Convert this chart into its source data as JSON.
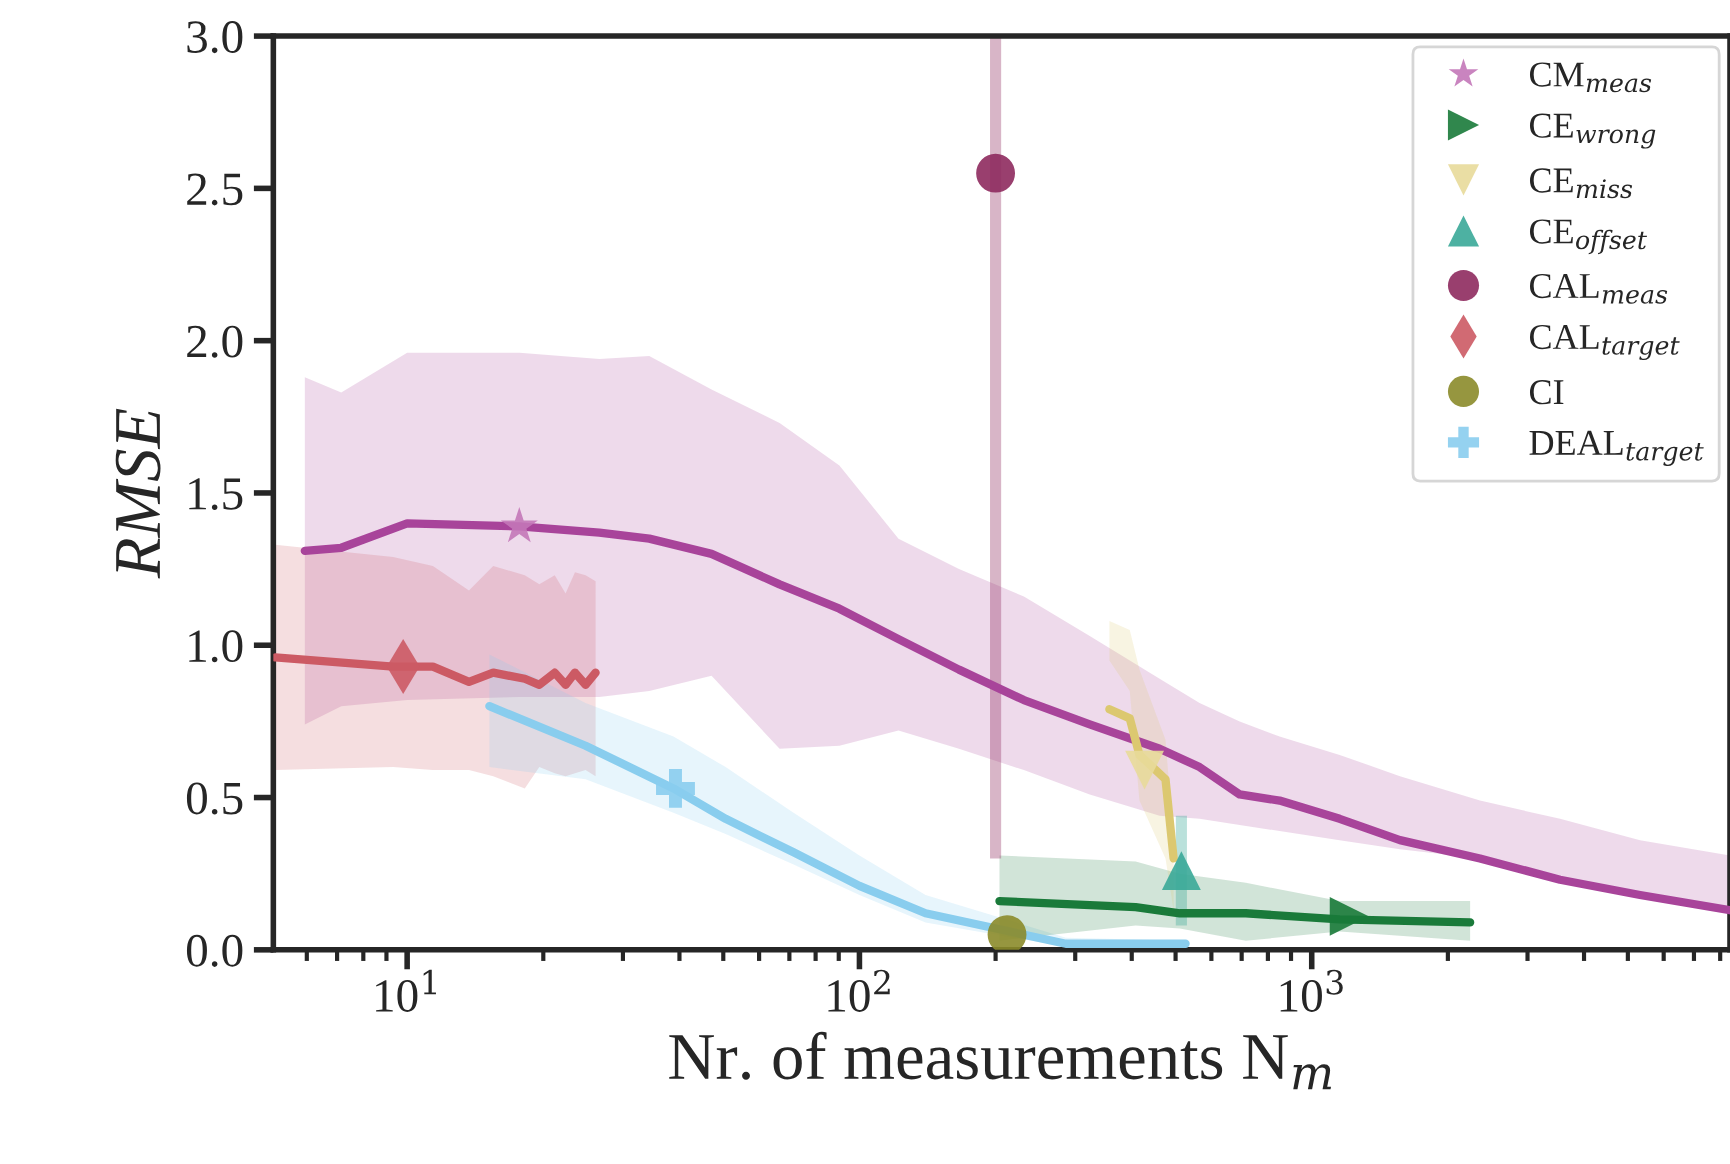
{
  "chart_data": {
    "type": "line",
    "xlabel": "Nr. of measurements N$_{m}$",
    "ylabel": "RMSE",
    "log": "x",
    "xlim": [
      5.06,
      8410
    ],
    "xticks": [
      {
        "value": 10,
        "label": "10$^{1}$"
      },
      {
        "value": 100,
        "label": "10$^{2}$"
      },
      {
        "value": 1000,
        "label": "10$^{3}$"
      }
    ],
    "ylim": [
      0,
      3.0
    ],
    "yticks": [
      {
        "value": 0,
        "label": "0.0"
      },
      0.5,
      {
        "value": 1,
        "label": "1.0"
      },
      1.5,
      {
        "value": 2,
        "label": "2.0"
      },
      2.5,
      {
        "value": 3,
        "label": "3.0"
      }
    ],
    "grid": false,
    "legend": "top right",
    "series": [
      {
        "color": "#a8449a",
        "x": [
          5.94,
          7.15,
          10,
          17.7,
          26.6,
          34.3,
          47.1,
          66.6,
          90.3,
          122,
          166,
          231,
          323,
          461,
          565,
          693,
          849,
          1153,
          1567,
          2355,
          3540,
          5320,
          8410
        ],
        "values": [
          1.31,
          1.32,
          1.4,
          1.39,
          1.37,
          1.35,
          1.3,
          1.2,
          1.12,
          1.02,
          0.92,
          0.82,
          0.74,
          0.66,
          0.6,
          0.51,
          0.49,
          0.43,
          0.36,
          0.3,
          0.23,
          0.18,
          0.13
        ],
        "upper": [
          1.88,
          1.83,
          1.96,
          1.96,
          1.94,
          1.95,
          1.84,
          1.73,
          1.59,
          1.35,
          1.25,
          1.16,
          1.03,
          0.89,
          0.81,
          0.75,
          0.7,
          0.64,
          0.57,
          0.49,
          0.43,
          0.36,
          0.31
        ],
        "lower": [
          0.74,
          0.8,
          0.82,
          0.83,
          0.83,
          0.85,
          0.9,
          0.66,
          0.67,
          0.72,
          0.66,
          0.59,
          0.51,
          0.44,
          0.43,
          0.41,
          0.39,
          0.36,
          0.33,
          0.3,
          0.24,
          0.19,
          0.14
        ]
      },
      {
        "color": "#cc5a64",
        "x": [
          5.11,
          9.31,
          11.4,
          13.7,
          15.5,
          18.2,
          19.6,
          21.2,
          22.4,
          23.5,
          24.8,
          26.1
        ],
        "values": [
          0.96,
          0.93,
          0.93,
          0.88,
          0.91,
          0.89,
          0.87,
          0.91,
          0.87,
          0.91,
          0.87,
          0.91
        ],
        "upper": [
          1.33,
          1.29,
          1.26,
          1.18,
          1.26,
          1.23,
          1.2,
          1.23,
          1.17,
          1.24,
          1.23,
          1.21
        ],
        "lower": [
          0.59,
          0.6,
          0.59,
          0.59,
          0.57,
          0.53,
          0.6,
          0.58,
          0.57,
          0.58,
          0.59,
          0.57
        ]
      },
      {
        "color": "#89cdee",
        "x": [
          15.2,
          24.8,
          38.8,
          50.6,
          71.5,
          100,
          140,
          286,
          526
        ],
        "values": [
          0.8,
          0.67,
          0.53,
          0.43,
          0.32,
          0.21,
          0.12,
          0.02,
          0.02
        ],
        "upper": [
          0.97,
          0.81,
          0.7,
          0.6,
          0.45,
          0.31,
          0.18,
          0.04,
          0.03
        ],
        "lower": [
          0.6,
          0.56,
          0.45,
          0.38,
          0.28,
          0.18,
          0.09,
          0.01,
          0.01
        ]
      },
      {
        "color": "#1a7a3a",
        "x": [
          204,
          408,
          511,
          715,
          1153,
          2240
        ],
        "values": [
          0.16,
          0.14,
          0.12,
          0.12,
          0.1,
          0.09
        ],
        "upper": [
          0.31,
          0.29,
          0.25,
          0.22,
          0.16,
          0.16
        ],
        "lower": [
          0.03,
          0.08,
          0.07,
          0.03,
          0.06,
          0.03
        ]
      },
      {
        "color": "#dcc870",
        "x": [
          357,
          396,
          416,
          475,
          495
        ],
        "values": [
          0.79,
          0.76,
          0.64,
          0.56,
          0.3
        ],
        "upper": [
          1.08,
          1.05,
          0.92,
          0.69,
          0.36
        ],
        "lower": [
          0.95,
          0.85,
          0.49,
          0.3,
          0.13
        ]
      },
      {
        "type": "scatter",
        "name": "CM$_{meas}$",
        "color": "#c377b8",
        "marker": "star",
        "x": [
          17.7
        ],
        "values": [
          1.39
        ]
      },
      {
        "type": "scatter",
        "name": "CE$_{wrong}$",
        "color": "#1a7a3a",
        "marker": "triangle_right",
        "x": [
          1210
        ],
        "values": [
          0.11
        ]
      },
      {
        "type": "scatter",
        "name": "CE$_{miss}$",
        "color": "#e8da9a",
        "marker": "triangle_down",
        "x": [
          427
        ],
        "values": [
          0.59
        ]
      },
      {
        "type": "scatter",
        "name": "CE$_{offset}$",
        "color": "#3aa898",
        "marker": "triangle",
        "x": [
          515
        ],
        "values": [
          0.26
        ],
        "errors": [
          [
            0.08,
            0.44
          ]
        ]
      },
      {
        "type": "scatter",
        "name": "CAL$_{meas}$",
        "color": "#8e2a5e",
        "marker": "circle",
        "x": [
          200
        ],
        "values": [
          2.55
        ],
        "errors": [
          [
            0.3,
            3.0
          ]
        ]
      },
      {
        "type": "scatter",
        "name": "CAL$_{target}$",
        "color": "#cc5a64",
        "marker": "diamond",
        "x": [
          9.8
        ],
        "values": [
          0.93
        ]
      },
      {
        "type": "scatter",
        "name": "CI",
        "color": "#8b8b2a",
        "marker": "circle",
        "x": [
          212
        ],
        "values": [
          0.05
        ]
      },
      {
        "type": "scatter",
        "name": "DEAL$_{target}$",
        "color": "#89cdee",
        "marker": "cross",
        "x": [
          39.2
        ],
        "values": [
          0.53
        ]
      }
    ]
  }
}
